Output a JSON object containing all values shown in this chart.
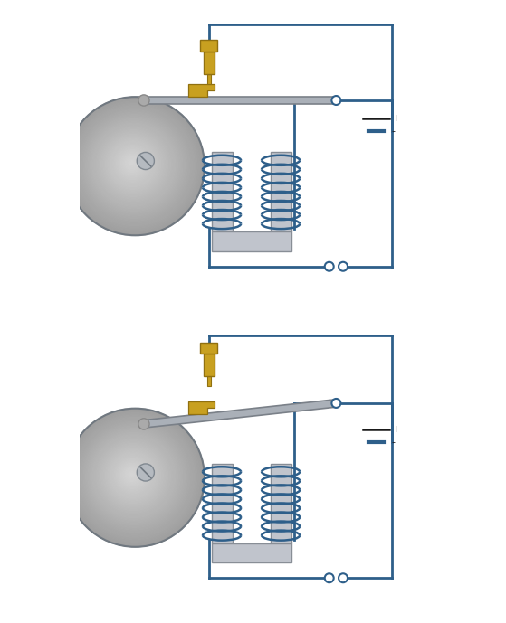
{
  "circuit_color": "#2e5f8a",
  "circuit_lw": 2.0,
  "coil_color": "#2e5f8a",
  "iron_core_color": "#c0c4cc",
  "iron_core_edge": "#888e96",
  "spring_color": "#c8a020",
  "beam_color": "#aab0b8",
  "beam_edge": "#7a8088",
  "bell_color_outer": "#a0a5ac",
  "bell_color_inner": "#c8cdd4",
  "bell_edge": "#707880",
  "background": "#ffffff",
  "screw_body_color": "#c8a020",
  "screw_edge_color": "#907010",
  "node_color": "#2e5f8a",
  "battery_line_color": "#1a1a1a",
  "pivot_color": "#aaaaaa",
  "pivot_edge": "#888888"
}
